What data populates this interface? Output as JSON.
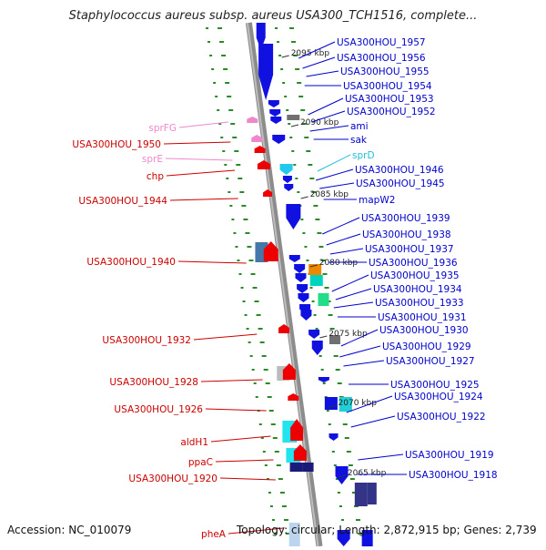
{
  "title": "Staphylococcus aureus subsp. aureus USA300_TCH1516, complete...",
  "footer": {
    "accession": "Accession: NC_010079",
    "topology": "Topology: circular; Length: 2,872,915 bp; Genes: 2,739"
  },
  "colors": {
    "right_label": "#0000cc",
    "left_label": "#cc0000",
    "pink_label": "#ee88cc",
    "cyan_label": "#22bbdd",
    "backbone": "#8c8c8c",
    "tick": "#2a8a2a"
  },
  "kbp_ticks": [
    "2095 kbp",
    "2090 kbp",
    "2085 kbp",
    "2080 kbp",
    "2075 kbp",
    "2070 kbp",
    "2065 kbp"
  ],
  "right_labels": [
    "USA300HOU_1957",
    "USA300HOU_1956",
    "USA300HOU_1955",
    "USA300HOU_1954",
    "USA300HOU_1953",
    "USA300HOU_1952",
    "ami",
    "sak",
    "sprD",
    "USA300HOU_1946",
    "USA300HOU_1945",
    "mapW2",
    "USA300HOU_1939",
    "USA300HOU_1938",
    "USA300HOU_1937",
    "USA300HOU_1936",
    "USA300HOU_1935",
    "USA300HOU_1934",
    "USA300HOU_1933",
    "USA300HOU_1931",
    "USA300HOU_1930",
    "USA300HOU_1929",
    "USA300HOU_1927",
    "USA300HOU_1925",
    "USA300HOU_1924",
    "USA300HOU_1922",
    "USA300HOU_1919",
    "USA300HOU_1918"
  ],
  "left_labels": [
    "sprFG",
    "USA300HOU_1950",
    "sprE",
    "chp",
    "USA300HOU_1944",
    "USA300HOU_1940",
    "USA300HOU_1932",
    "USA300HOU_1928",
    "USA300HOU_1926",
    "aldH1",
    "ppaC",
    "USA300HOU_1920",
    "pheA"
  ]
}
